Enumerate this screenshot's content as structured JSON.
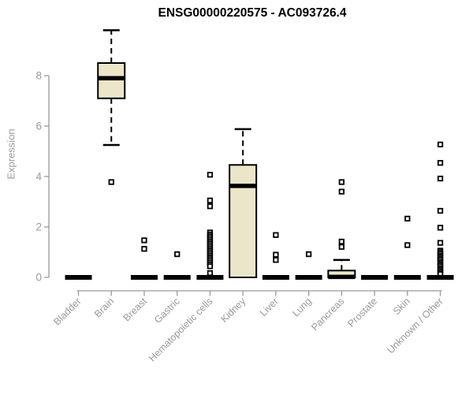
{
  "header": {
    "title": "ENSG00000220575 - AC093726.4"
  },
  "chart_data": {
    "type": "boxplot",
    "title": "ENSG00000220575 - AC093726.4",
    "ylabel": "Expression",
    "xlabel": "",
    "yticks": [
      0,
      2,
      4,
      6,
      8
    ],
    "ylim": [
      0,
      9.9
    ],
    "grid": false,
    "legend": "none",
    "colors": {
      "box_fill": "#EBE6CA",
      "box_stroke": "#000000",
      "median": "#000000",
      "whisker": "#000000",
      "outlier": "#000000",
      "axis": "#999999",
      "tick_label": "#999999",
      "title": "#000000",
      "background": "#ffffff"
    },
    "categories": [
      "Bladder",
      "Brain",
      "Breast",
      "Gastric",
      "Hematopoietic cells",
      "Kidney",
      "Liver",
      "Lung",
      "Pancreas",
      "Prostate",
      "Skin",
      "Unknown / Other"
    ],
    "series": [
      {
        "category": "Bladder",
        "low": 0,
        "q1": 0,
        "median": 0,
        "q3": 0,
        "high": 0,
        "outliers": []
      },
      {
        "category": "Brain",
        "low": 5.25,
        "q1": 7.1,
        "median": 7.9,
        "q3": 8.5,
        "high": 9.8,
        "outliers": [
          3.78
        ]
      },
      {
        "category": "Breast",
        "low": 0,
        "q1": 0,
        "median": 0,
        "q3": 0,
        "high": 0,
        "outliers": [
          1.47,
          1.13
        ]
      },
      {
        "category": "Gastric",
        "low": 0,
        "q1": 0,
        "median": 0,
        "q3": 0,
        "high": 0,
        "outliers": [
          0.92
        ]
      },
      {
        "category": "Hematopoietic cells",
        "low": 0,
        "q1": 0,
        "median": 0,
        "q3": 0,
        "high": 0,
        "outliers": [
          4.07,
          3.05,
          2.82,
          1.78,
          1.7,
          1.63,
          1.56,
          1.49,
          1.42,
          1.35,
          1.28,
          1.21,
          1.14,
          1.07,
          1.0,
          0.93,
          0.86,
          0.79,
          0.72,
          0.65,
          0.58,
          0.51,
          0.44,
          0.17
        ]
      },
      {
        "category": "Kidney",
        "low": 0,
        "q1": 0,
        "median": 3.63,
        "q3": 4.46,
        "high": 5.88,
        "outliers": []
      },
      {
        "category": "Liver",
        "low": 0,
        "q1": 0,
        "median": 0,
        "q3": 0,
        "high": 0,
        "outliers": [
          1.68,
          0.9,
          0.69
        ]
      },
      {
        "category": "Lung",
        "low": 0,
        "q1": 0,
        "median": 0,
        "q3": 0,
        "high": 0,
        "outliers": [
          0.92
        ]
      },
      {
        "category": "Pancreas",
        "low": 0,
        "q1": 0,
        "median": 0.02,
        "q3": 0.27,
        "high": 0.69,
        "outliers": [
          3.78,
          3.4,
          1.42,
          1.21
        ]
      },
      {
        "category": "Prostate",
        "low": 0,
        "q1": 0,
        "median": 0,
        "q3": 0,
        "high": 0,
        "outliers": []
      },
      {
        "category": "Skin",
        "low": 0,
        "q1": 0,
        "median": 0,
        "q3": 0,
        "high": 0,
        "outliers": [
          2.33,
          1.28
        ]
      },
      {
        "category": "Unknown / Other",
        "low": 0,
        "q1": 0,
        "median": 0,
        "q3": 0,
        "high": 0,
        "outliers": [
          5.27,
          4.54,
          3.92,
          2.64,
          1.97,
          1.37,
          1.06,
          1.0,
          0.94,
          0.87,
          0.81,
          0.75,
          0.69,
          0.62,
          0.56,
          0.5,
          0.44,
          0.37,
          0.31,
          0.25,
          0.19,
          0.13
        ]
      }
    ]
  }
}
